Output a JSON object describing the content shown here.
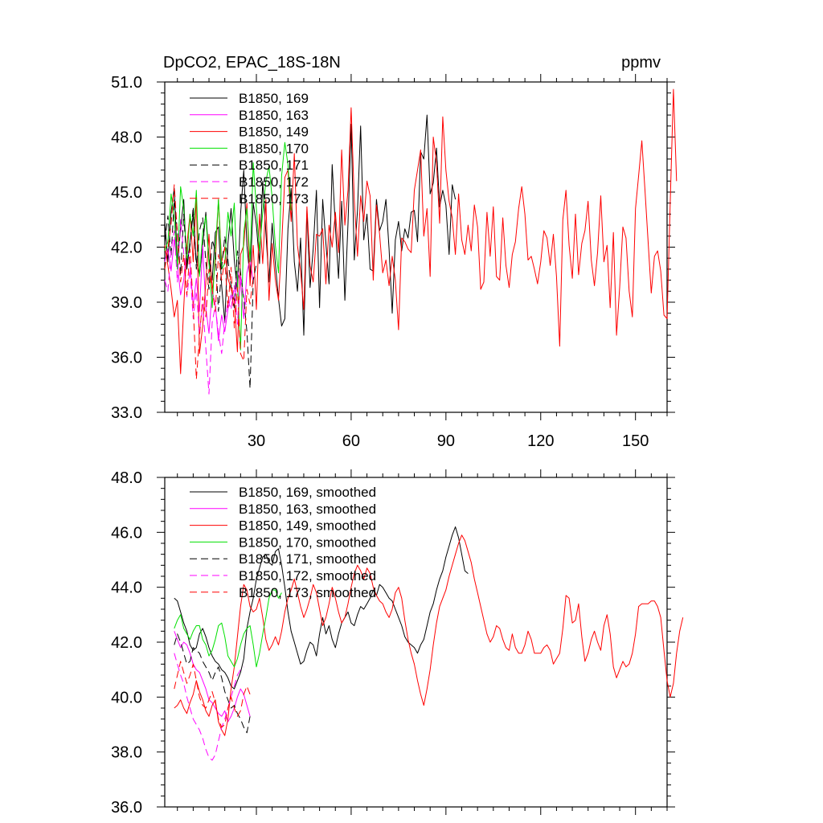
{
  "chart_data": [
    {
      "type": "line",
      "title_left": "DpCO2, EPAC_18S-18N",
      "title_right": "ppmv",
      "xlabel": "",
      "ylabel": "",
      "xlim": [
        1,
        160
      ],
      "ylim": [
        33,
        51
      ],
      "xticks": [
        30,
        60,
        90,
        120,
        150
      ],
      "xtick_labels": [
        "30",
        "60",
        "90",
        "120",
        "150"
      ],
      "yticks": [
        33,
        36,
        39,
        42,
        45,
        48,
        51
      ],
      "ytick_labels": [
        "33.0",
        "36.0",
        "39.0",
        "42.0",
        "45.0",
        "48.0",
        "51.0"
      ],
      "legend_location": "top-left",
      "series": [
        {
          "name": "B1850, 169",
          "color": "#000000",
          "dash": "solid",
          "x0": 1,
          "values": [
            43.4,
            41.2,
            43.9,
            45.2,
            41.1,
            43.0,
            44.6,
            40.8,
            42.3,
            43.8,
            41.2,
            40.5,
            42.1,
            43.9,
            41.4,
            40.2,
            42.8,
            43.1,
            39.9,
            37.9,
            42.2,
            44.1,
            41.3,
            39.6,
            43.8,
            46.2,
            42.1,
            40.3,
            44.4,
            43.2,
            41.1,
            45.6,
            42.8,
            40.1,
            43.3,
            41.1,
            39.2,
            37.7,
            38.1,
            43.0,
            45.2,
            41.2,
            39.6,
            42.5,
            37.2,
            44.0,
            39.8,
            41.9,
            45.1,
            38.7,
            44.6,
            42.2,
            40.0,
            46.5,
            43.1,
            40.3,
            44.5,
            39.1,
            43.3,
            48.7,
            41.3,
            44.0,
            48.6,
            42.4,
            43.8,
            40.8,
            40.7,
            44.6,
            42.9,
            43.4,
            44.6,
            41.9,
            38.4,
            42.4,
            43.4,
            41.8,
            43.0,
            42.5,
            43.9,
            44.0,
            42.3,
            47.2,
            46.8,
            49.2,
            44.9,
            45.5,
            47.4,
            44.2,
            45.1,
            44.3,
            41.6,
            45.4,
            44.6
          ]
        },
        {
          "name": "B1850, 163",
          "color": "#ff00ff",
          "dash": "solid",
          "x0": 1,
          "values": [
            41.2,
            41.9,
            40.7,
            42.4,
            41.1,
            39.4,
            40.2,
            42.1,
            41.1,
            38.8,
            40.3,
            38.5,
            42.1,
            38.7,
            37.3,
            39.6,
            38.9,
            36.9,
            38.3,
            37.4,
            38.6,
            39.4,
            38.7,
            40.7,
            40.1,
            38.1,
            40.6,
            41.4,
            40.1
          ]
        },
        {
          "name": "B1850, 149",
          "color": "#ff0000",
          "dash": "solid",
          "x0": 1,
          "values": [
            42.1,
            41.0,
            39.7,
            38.2,
            39.1,
            35.1,
            38.7,
            42.1,
            43.8,
            41.2,
            44.8,
            36.2,
            37.7,
            40.1,
            42.7,
            39.6,
            41.2,
            44.6,
            41.2,
            42.0,
            40.3,
            39.7,
            39.1,
            36.3,
            41.6,
            42.1,
            44.4,
            39.9,
            42.1,
            38.6,
            43.8,
            41.1,
            44.6,
            39.1,
            42.2,
            40.2,
            39.1,
            42.1,
            45.8,
            46.2,
            43.4,
            47.1,
            42.1,
            40.7,
            38.6,
            44.2,
            41.0,
            40.1,
            42.7,
            42.6,
            43.0,
            40.0,
            43.2,
            42.0,
            43.9,
            41.7,
            47.3,
            43.2,
            45.1,
            49.6,
            44.6,
            41.5,
            44.8,
            43.4,
            45.6,
            44.8,
            40.2,
            44.3,
            42.7,
            40.6,
            41.3,
            39.9,
            41.5,
            40.2,
            37.5,
            42.5,
            42.3,
            41.9,
            41.7,
            45.1,
            46.2,
            47.3,
            42.6,
            44.1,
            40.4,
            48.0,
            46.6,
            43.3,
            49.1,
            46.2,
            44.5,
            43.6,
            41.6,
            44.9,
            42.4,
            41.6,
            43.2,
            41.8,
            44.3,
            43.1,
            39.7,
            40.1,
            43.9,
            41.5,
            44.2,
            40.4,
            40.2,
            43.6,
            41.0,
            39.8,
            41.6,
            42.3,
            44.1,
            45.3,
            43.8,
            41.3,
            41.5,
            40.8,
            40.0,
            41.2,
            42.9,
            42.5,
            41.0,
            42.7,
            40.4,
            36.6,
            43.5,
            45.1,
            42.1,
            40.3,
            43.8,
            40.5,
            42.2,
            42.9,
            44.5,
            41.3,
            39.9,
            41.7,
            44.8,
            41.2,
            42.1,
            38.7,
            42.8,
            37.2,
            39.8,
            43.1,
            42.5,
            39.6,
            38.2,
            44.1,
            45.9,
            47.8,
            45.1,
            42.3,
            39.5,
            41.5,
            41.8,
            40.7,
            38.3,
            38.1,
            44.4,
            50.6,
            45.6
          ]
        },
        {
          "name": "B1850, 170",
          "color": "#00e000",
          "dash": "solid",
          "x0": 1,
          "values": [
            41.8,
            42.3,
            44.9,
            43.6,
            40.8,
            45.3,
            44.1,
            41.2,
            43.8,
            42.6,
            45.1,
            40.4,
            42.8,
            43.7,
            41.1,
            38.7,
            41.8,
            44.6,
            40.8,
            41.1,
            43.9,
            42.6,
            44.4,
            40.1,
            36.4,
            42.8,
            44.1,
            41.2,
            46.6,
            44.1,
            41.8,
            43.9,
            45.6,
            46.4,
            44.7,
            42.1,
            40.6,
            45.9,
            47.7,
            46.5,
            44.0
          ]
        },
        {
          "name": "B1850, 171",
          "color": "#000000",
          "dash": "dashed",
          "x0": 1,
          "values": [
            42.3,
            43.7,
            41.5,
            44.6,
            42.9,
            40.5,
            43.8,
            41.0,
            42.1,
            44.2,
            40.8,
            42.9,
            43.6,
            41.2,
            39.7,
            42.4,
            41.8,
            38.5,
            40.9,
            42.6,
            41.3,
            39.9,
            38.7,
            41.8,
            40.6,
            39.2,
            37.4,
            34.3,
            40.2,
            41.1
          ]
        },
        {
          "name": "B1850, 172",
          "color": "#ff00ff",
          "dash": "dashed",
          "x0": 1,
          "values": [
            40.2,
            39.6,
            41.8,
            42.9,
            40.1,
            43.5,
            41.7,
            39.3,
            40.8,
            38.1,
            39.6,
            37.3,
            38.9,
            36.5,
            34.0,
            37.9,
            38.8,
            37.3,
            36.2,
            37.9,
            39.1,
            38.6,
            39.9,
            37.8,
            40.5,
            39.3,
            38.7
          ]
        },
        {
          "name": "B1850, 173",
          "color": "#ff0000",
          "dash": "dashed",
          "x0": 1,
          "values": [
            40.8,
            41.9,
            43.3,
            45.4,
            42.7,
            40.1,
            41.6,
            39.4,
            41.9,
            38.8,
            34.8,
            37.1,
            39.3,
            38.2,
            40.8,
            39.7,
            38.5,
            41.6,
            40.2,
            41.3,
            38.7,
            40.9,
            37.6,
            39.8,
            36.2,
            35.8,
            39.7,
            38.9,
            40.4
          ]
        }
      ]
    },
    {
      "type": "line",
      "title_left": "",
      "title_right": "",
      "xlabel": "",
      "ylabel": "",
      "xlim": [
        1,
        160
      ],
      "ylim": [
        36,
        48
      ],
      "xticks": [
        30,
        60,
        90,
        120,
        150
      ],
      "xtick_labels": [],
      "yticks": [
        36,
        38,
        40,
        42,
        44,
        46,
        48
      ],
      "ytick_labels": [
        "36.0",
        "38.0",
        "40.0",
        "42.0",
        "44.0",
        "46.0",
        "48.0"
      ],
      "legend_location": "top-left",
      "series": [
        {
          "name": "B1850, 169, smoothed",
          "color": "#000000",
          "dash": "solid",
          "x0": 4,
          "values": [
            43.6,
            43.5,
            43.1,
            42.7,
            42.4,
            41.9,
            41.7,
            41.8,
            42.3,
            42.5,
            42.2,
            41.8,
            41.5,
            41.3,
            41.2,
            41.0,
            40.9,
            40.7,
            40.4,
            40.3,
            40.6,
            40.9,
            41.4,
            42.5,
            43.1,
            43.6,
            44.3,
            44.7,
            45.1,
            45.2,
            44.9,
            44.8,
            45.3,
            45.4,
            44.8,
            44.0,
            43.1,
            42.4,
            42.0,
            41.6,
            41.2,
            41.3,
            41.7,
            42.0,
            41.9,
            41.5,
            42.3,
            42.9,
            42.3,
            42.6,
            42.1,
            41.8,
            42.3,
            42.7,
            42.9,
            43.1,
            42.7,
            42.6,
            43.0,
            43.3,
            43.2,
            43.4,
            43.6,
            43.9,
            43.7,
            44.1,
            44.0,
            43.8,
            43.6,
            43.5,
            43.2,
            42.9,
            42.6,
            42.2,
            42.0,
            41.9,
            41.8,
            41.6,
            41.9,
            42.1,
            42.6,
            43.1,
            43.4,
            43.9,
            44.3,
            44.6,
            45.1,
            45.5,
            45.9,
            46.2,
            45.8,
            45.2,
            44.6,
            44.5
          ]
        },
        {
          "name": "B1850, 163, smoothed",
          "color": "#ff00ff",
          "dash": "solid",
          "x0": 4,
          "values": [
            42.4,
            42.1,
            41.8,
            42.0,
            41.9,
            41.6,
            41.2,
            41.0,
            40.9,
            40.6,
            40.3,
            39.9,
            39.8,
            39.6,
            39.4,
            39.3,
            39.5,
            39.1,
            39.3,
            39.6,
            40.0,
            40.3,
            40.1,
            39.7,
            39.3
          ]
        },
        {
          "name": "B1850, 149, smoothed",
          "color": "#ff0000",
          "dash": "solid",
          "x0": 4,
          "values": [
            39.6,
            39.7,
            39.9,
            39.6,
            39.4,
            39.8,
            40.1,
            40.6,
            40.2,
            39.9,
            39.5,
            39.3,
            39.7,
            39.9,
            39.1,
            38.8,
            38.6,
            39.2,
            40.3,
            41.1,
            42.2,
            43.3,
            44.1,
            43.9,
            43.3,
            43.1,
            43.2,
            43.6,
            42.9,
            42.1,
            41.7,
            41.9,
            42.2,
            41.9,
            42.4,
            43.1,
            43.6,
            43.9,
            44.3,
            43.8,
            43.3,
            42.9,
            43.2,
            43.6,
            44.1,
            43.8,
            43.2,
            42.6,
            42.9,
            43.4,
            44.0,
            43.6,
            43.1,
            42.7,
            42.9,
            43.4,
            44.0,
            44.5,
            44.8,
            44.6,
            44.3,
            44.7,
            44.5,
            44.0,
            43.7,
            43.5,
            43.4,
            43.1,
            42.9,
            43.2,
            43.8,
            44.0,
            43.6,
            42.8,
            42.1,
            41.6,
            41.2,
            40.6,
            40.1,
            39.7,
            40.3,
            41.0,
            41.9,
            42.7,
            43.3,
            43.6,
            43.9,
            44.4,
            44.8,
            45.2,
            45.6,
            45.9,
            45.7,
            45.3,
            44.9,
            44.3,
            43.8,
            43.3,
            42.8,
            42.3,
            42.0,
            42.2,
            42.6,
            42.5,
            42.1,
            41.8,
            41.7,
            42.3,
            41.8,
            41.6,
            41.6,
            41.9,
            42.4,
            42.1,
            41.6,
            41.6,
            41.6,
            41.8,
            41.9,
            41.7,
            41.2,
            41.4,
            41.6,
            42.5,
            43.7,
            43.6,
            42.7,
            42.8,
            43.4,
            42.2,
            41.3,
            41.6,
            42.1,
            42.4,
            42.0,
            41.7,
            42.6,
            43.0,
            42.3,
            41.1,
            40.7,
            41.0,
            41.3,
            41.1,
            41.2,
            41.6,
            42.3,
            43.3,
            43.4,
            43.4,
            43.4,
            43.5,
            43.5,
            43.3,
            42.9,
            41.7,
            40.6,
            40.0,
            40.5,
            41.6,
            42.4,
            42.9
          ]
        },
        {
          "name": "B1850, 170, smoothed",
          "color": "#00e000",
          "dash": "solid",
          "x0": 4,
          "values": [
            42.5,
            42.8,
            43.0,
            42.5,
            42.3,
            42.1,
            42.4,
            42.6,
            42.6,
            42.1,
            41.9,
            41.5,
            41.7,
            42.1,
            42.6,
            42.7,
            42.2,
            41.5,
            41.3,
            41.1,
            41.4,
            41.9,
            42.3,
            42.5,
            42.6,
            41.9,
            41.1,
            41.6,
            42.3,
            42.9,
            43.6,
            43.9,
            43.9,
            43.6,
            43.8
          ]
        },
        {
          "name": "B1850, 171, smoothed",
          "color": "#000000",
          "dash": "dashed",
          "x0": 4,
          "values": [
            41.9,
            42.3,
            42.0,
            41.6,
            41.2,
            41.3,
            41.8,
            41.7,
            41.6,
            41.3,
            41.1,
            40.9,
            40.6,
            40.9,
            41.1,
            40.7,
            40.2,
            39.9,
            39.6,
            39.7,
            39.4,
            39.2,
            38.9,
            38.7,
            39.3
          ]
        },
        {
          "name": "B1850, 172, smoothed",
          "color": "#ff00ff",
          "dash": "dashed",
          "x0": 4,
          "values": [
            41.6,
            41.2,
            40.8,
            40.5,
            40.0,
            39.6,
            39.2,
            39.0,
            38.8,
            38.5,
            38.1,
            37.8,
            37.7,
            37.9,
            38.4,
            38.9,
            39.2,
            39.6,
            40.0,
            40.4,
            40.8,
            41.0,
            41.1
          ]
        },
        {
          "name": "B1850, 173, smoothed",
          "color": "#ff0000",
          "dash": "dashed",
          "x0": 4,
          "values": [
            40.3,
            40.8,
            41.3,
            40.9,
            40.5,
            40.8,
            41.2,
            40.6,
            40.0,
            39.7,
            39.6,
            39.9,
            40.2,
            39.8,
            39.2,
            38.9,
            39.0,
            39.6,
            40.0,
            39.6,
            39.3,
            39.5,
            40.1,
            40.4,
            40.1
          ]
        }
      ]
    }
  ]
}
